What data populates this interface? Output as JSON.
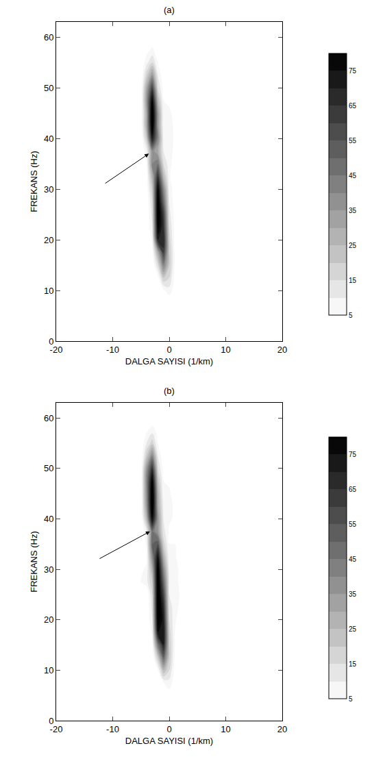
{
  "chart_data": [
    {
      "type": "contour",
      "title": "(a)",
      "x_label": "DALGA SAYISI (1/km)",
      "y_label": "FREKANS (Hz)",
      "x": [
        -6,
        -5,
        -4,
        -3,
        -2,
        -1,
        0,
        1,
        2,
        3
      ],
      "y": [
        5,
        7.5,
        10,
        12.5,
        15,
        17.5,
        20,
        22.5,
        25,
        27.5,
        30,
        32.5,
        35,
        37.5,
        40,
        42.5,
        45,
        47.5,
        50,
        52.5,
        55,
        57.5,
        60
      ],
      "z": [
        [
          0,
          0,
          0,
          0,
          0,
          0,
          0,
          0,
          0,
          0
        ],
        [
          0,
          0,
          0,
          0,
          0,
          0,
          0,
          0,
          0,
          0
        ],
        [
          0,
          0,
          0,
          0,
          0,
          4,
          8,
          2,
          0,
          0
        ],
        [
          0,
          0,
          0,
          0,
          3,
          20,
          15,
          3,
          0,
          0
        ],
        [
          0,
          0,
          0,
          0,
          15,
          42,
          20,
          4,
          0,
          0
        ],
        [
          0,
          0,
          0,
          3,
          30,
          62,
          20,
          4,
          0,
          0
        ],
        [
          0,
          0,
          0,
          6,
          70,
          70,
          18,
          3,
          0,
          0
        ],
        [
          0,
          0,
          0,
          10,
          82,
          65,
          15,
          3,
          0,
          0
        ],
        [
          0,
          0,
          0,
          12,
          86,
          62,
          12,
          3,
          0,
          0
        ],
        [
          0,
          0,
          0,
          15,
          85,
          50,
          10,
          2,
          0,
          0
        ],
        [
          0,
          0,
          2,
          20,
          80,
          40,
          8,
          2,
          0,
          0
        ],
        [
          0,
          0,
          3,
          28,
          65,
          25,
          6,
          0,
          0,
          0
        ],
        [
          0,
          0,
          5,
          40,
          45,
          15,
          7,
          2,
          0,
          0
        ],
        [
          0,
          0,
          8,
          38,
          30,
          10,
          8,
          3,
          0,
          0
        ],
        [
          0,
          0,
          20,
          72,
          40,
          8,
          8,
          4,
          0,
          0
        ],
        [
          0,
          0,
          30,
          86,
          35,
          6,
          7,
          4,
          0,
          0
        ],
        [
          0,
          0,
          30,
          88,
          35,
          6,
          6,
          3,
          0,
          0
        ],
        [
          0,
          0,
          35,
          80,
          25,
          5,
          4,
          0,
          0,
          0
        ],
        [
          0,
          0,
          30,
          60,
          15,
          3,
          0,
          0,
          0,
          0
        ],
        [
          0,
          0,
          18,
          35,
          10,
          0,
          0,
          0,
          0,
          0
        ],
        [
          0,
          0,
          8,
          15,
          5,
          0,
          0,
          0,
          0,
          0
        ],
        [
          0,
          0,
          3,
          6,
          2,
          0,
          0,
          0,
          0,
          0
        ],
        [
          0,
          0,
          0,
          0,
          0,
          0,
          0,
          0,
          0,
          0
        ]
      ],
      "xlim": [
        -20,
        20
      ],
      "xticks": [
        -20,
        -10,
        0,
        10,
        20
      ],
      "ylim": [
        0,
        63
      ],
      "yticks": [
        0,
        10,
        20,
        30,
        40,
        50,
        60
      ],
      "colorbar": {
        "range": [
          5,
          80
        ],
        "ticks": [
          5,
          15,
          25,
          35,
          45,
          55,
          65,
          75
        ],
        "step": 5
      },
      "colors": [
        "#ffffff",
        "#000000"
      ],
      "arrow": {
        "x": -3.6,
        "y": 37,
        "ax": -11.5,
        "ay": 31
      }
    },
    {
      "type": "contour",
      "title": "(b)",
      "x_label": "DALGA SAYISI (1/km)",
      "y_label": "FREKANS (Hz)",
      "x": [
        -6,
        -5,
        -4,
        -3,
        -2,
        -1,
        0,
        1,
        2,
        3
      ],
      "y": [
        5,
        7.5,
        10,
        12.5,
        15,
        17.5,
        20,
        22.5,
        25,
        27.5,
        30,
        32.5,
        35,
        37.5,
        40,
        42.5,
        45,
        47.5,
        50,
        52.5,
        55,
        57.5,
        60
      ],
      "z": [
        [
          0,
          0,
          0,
          0,
          0,
          0,
          2,
          0,
          0,
          0
        ],
        [
          0,
          0,
          0,
          0,
          0,
          5,
          8,
          2,
          0,
          0
        ],
        [
          0,
          0,
          0,
          0,
          5,
          25,
          15,
          3,
          0,
          0
        ],
        [
          0,
          0,
          0,
          0,
          20,
          50,
          20,
          4,
          0,
          0
        ],
        [
          0,
          0,
          0,
          3,
          45,
          70,
          20,
          5,
          0,
          0
        ],
        [
          0,
          0,
          0,
          6,
          75,
          75,
          18,
          5,
          0,
          0
        ],
        [
          0,
          0,
          0,
          10,
          85,
          72,
          15,
          6,
          2,
          0
        ],
        [
          0,
          0,
          0,
          12,
          88,
          68,
          12,
          8,
          3,
          0
        ],
        [
          0,
          0,
          0,
          15,
          88,
          60,
          10,
          10,
          4,
          0
        ],
        [
          0,
          5,
          8,
          20,
          87,
          50,
          10,
          8,
          3,
          0
        ],
        [
          0,
          4,
          6,
          28,
          85,
          40,
          8,
          8,
          3,
          0
        ],
        [
          0,
          0,
          4,
          40,
          75,
          28,
          6,
          6,
          2,
          0
        ],
        [
          0,
          0,
          6,
          50,
          55,
          18,
          5,
          5,
          0,
          0
        ],
        [
          0,
          0,
          10,
          45,
          35,
          12,
          4,
          4,
          0,
          0
        ],
        [
          0,
          0,
          25,
          78,
          35,
          10,
          6,
          4,
          0,
          0
        ],
        [
          0,
          0,
          35,
          88,
          30,
          8,
          8,
          3,
          0,
          0
        ],
        [
          0,
          0,
          38,
          88,
          28,
          6,
          6,
          2,
          0,
          0
        ],
        [
          0,
          0,
          40,
          82,
          22,
          5,
          4,
          0,
          0,
          0
        ],
        [
          0,
          0,
          35,
          65,
          15,
          3,
          2,
          0,
          0,
          0
        ],
        [
          0,
          0,
          20,
          40,
          10,
          0,
          0,
          0,
          0,
          0
        ],
        [
          0,
          0,
          10,
          18,
          5,
          0,
          0,
          0,
          0,
          0
        ],
        [
          0,
          0,
          4,
          8,
          3,
          0,
          0,
          0,
          0,
          0
        ],
        [
          0,
          0,
          0,
          0,
          0,
          0,
          0,
          0,
          0,
          0
        ]
      ],
      "xlim": [
        -20,
        20
      ],
      "xticks": [
        -20,
        -10,
        0,
        10,
        20
      ],
      "ylim": [
        0,
        63
      ],
      "yticks": [
        0,
        10,
        20,
        30,
        40,
        50,
        60
      ],
      "colorbar": {
        "range": [
          5,
          80
        ],
        "ticks": [
          5,
          15,
          25,
          35,
          45,
          55,
          65,
          75
        ],
        "step": 5
      },
      "colors": [
        "#ffffff",
        "#000000"
      ],
      "arrow": {
        "x": -3.4,
        "y": 37.5,
        "ax": -12.5,
        "ay": 32
      }
    }
  ]
}
